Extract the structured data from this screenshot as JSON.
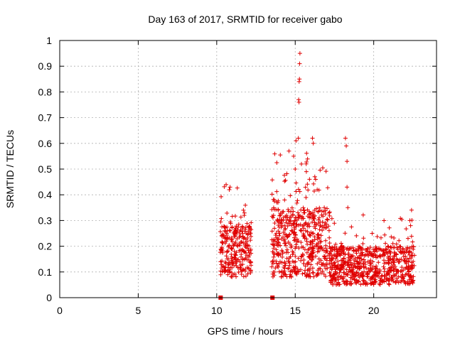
{
  "chart_data": {
    "type": "scatter",
    "title": "Day 163 of 2017, SRMTID for receiver gabo",
    "xlabel": "GPS time / hours",
    "ylabel": "SRMTID / TECUs",
    "xlim": [
      0,
      24
    ],
    "ylim": [
      0,
      1
    ],
    "grid": true,
    "marker": "+",
    "marker_color": "#e00000",
    "x_ticks": [
      0,
      5,
      10,
      15,
      20
    ],
    "x_tick_labels": [
      "0",
      "5",
      "10",
      "15",
      "20"
    ],
    "y_ticks": [
      0,
      0.1,
      0.2,
      0.3,
      0.4,
      0.5,
      0.6,
      0.7,
      0.8,
      0.9,
      1
    ],
    "y_tick_labels": [
      "0",
      "0.1",
      "0.2",
      "0.3",
      "0.4",
      "0.5",
      "0.6",
      "0.7",
      "0.8",
      "0.9",
      "1"
    ],
    "zero_markers": [
      {
        "x": 10.25,
        "y": 0
      },
      {
        "x": 13.55,
        "y": 0
      }
    ],
    "series": [
      {
        "name": "SRMTID",
        "clusters": [
          {
            "x_start": 10.2,
            "x_end": 12.2,
            "count": 260,
            "base_min": 0.08,
            "base_max": 0.28
          },
          {
            "x_start": 13.5,
            "x_end": 17.2,
            "count": 520,
            "base_min": 0.08,
            "base_max": 0.35
          },
          {
            "x_start": 17.2,
            "x_end": 22.6,
            "count": 650,
            "base_min": 0.05,
            "base_max": 0.2
          }
        ],
        "notable_points": [
          {
            "x": 10.5,
            "y": 0.26
          },
          {
            "x": 10.8,
            "y": 0.42
          },
          {
            "x": 10.85,
            "y": 0.43
          },
          {
            "x": 11.7,
            "y": 0.34
          },
          {
            "x": 11.75,
            "y": 0.32
          },
          {
            "x": 14.6,
            "y": 0.57
          },
          {
            "x": 14.9,
            "y": 0.55
          },
          {
            "x": 15.0,
            "y": 0.5
          },
          {
            "x": 15.05,
            "y": 0.61
          },
          {
            "x": 15.2,
            "y": 0.62
          },
          {
            "x": 15.22,
            "y": 0.77
          },
          {
            "x": 15.24,
            "y": 0.76
          },
          {
            "x": 15.25,
            "y": 0.84
          },
          {
            "x": 15.27,
            "y": 0.85
          },
          {
            "x": 15.28,
            "y": 0.91
          },
          {
            "x": 15.3,
            "y": 0.95
          },
          {
            "x": 15.7,
            "y": 0.52
          },
          {
            "x": 16.1,
            "y": 0.62
          },
          {
            "x": 16.15,
            "y": 0.6
          },
          {
            "x": 16.3,
            "y": 0.46
          },
          {
            "x": 16.4,
            "y": 0.42
          },
          {
            "x": 18.2,
            "y": 0.62
          },
          {
            "x": 18.25,
            "y": 0.59
          },
          {
            "x": 18.3,
            "y": 0.53
          },
          {
            "x": 18.3,
            "y": 0.43
          },
          {
            "x": 18.35,
            "y": 0.35
          },
          {
            "x": 19.9,
            "y": 0.25
          },
          {
            "x": 20.9,
            "y": 0.2
          },
          {
            "x": 22.3,
            "y": 0.3
          },
          {
            "x": 22.35,
            "y": 0.28
          }
        ]
      }
    ]
  }
}
